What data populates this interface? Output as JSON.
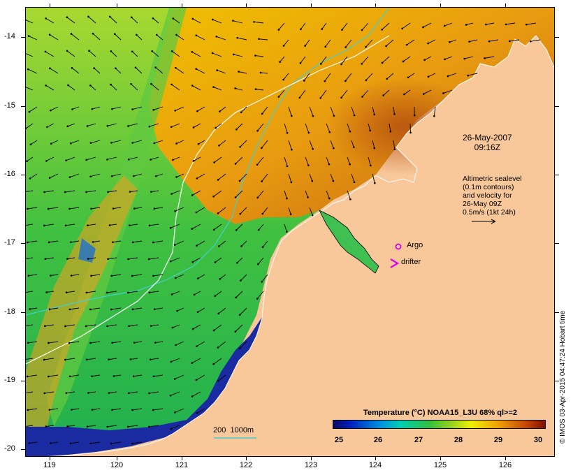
{
  "axes": {
    "y_ticks": [
      "-14",
      "-15",
      "-16",
      "-17",
      "-18",
      "-19",
      "-20"
    ],
    "x_ticks": [
      "119",
      "120",
      "121",
      "122",
      "123",
      "124",
      "125",
      "126"
    ]
  },
  "annotations": {
    "date": "26-May-2007\n09:16Z",
    "altimetry": "Altimetric sealevel\n(0.1m contours)\nand velocity for\n26-May 09Z\n0.5m/s (1kt 24h)",
    "argo": "Argo",
    "drifter": "drifter",
    "bathymetry_scale": "200  1000m"
  },
  "legend": {
    "title": "Temperature (°C) NOAA15_L3U 68% ql>=2",
    "ticks": [
      "25",
      "26",
      "27",
      "28",
      "29",
      "30"
    ],
    "min": 25,
    "max": 30
  },
  "credit": "© IMOS 03-Apr-2015 04:47:24 Hobart time",
  "colors": {
    "land": "#f8c89a",
    "argo_marker": "#e000e0",
    "drifter_marker": "#e000e0",
    "bathymetry_200m": "#40d0d0",
    "bathymetry_1000m": "#ffffff"
  }
}
